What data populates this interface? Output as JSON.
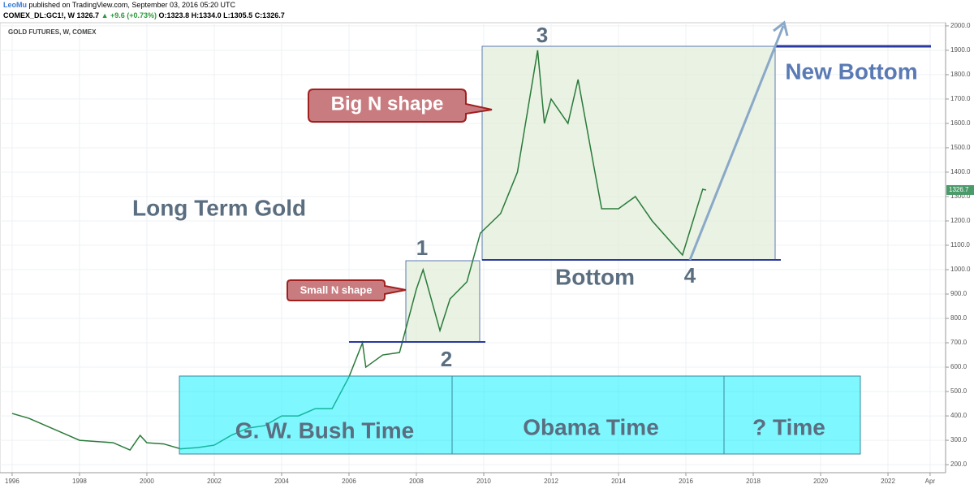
{
  "header": {
    "author": "LeoMu",
    "published": "published on TradingView.com, September 03, 2016 05:20 UTC",
    "symbol": "COMEX_DL:GC1!, W",
    "last": "1326.7",
    "change": "▲ +9.6 (+0.73%)",
    "open": "O:1323.8",
    "high": "H:1334.0",
    "low": "L:1305.5",
    "close": "C:1326.7"
  },
  "chart_data": {
    "type": "line",
    "title": "GOLD FUTURES, W, COMEX",
    "x": [
      1996.0,
      1996.5,
      1997.0,
      1997.5,
      1998.0,
      1998.5,
      1999.0,
      1999.5,
      1999.8,
      2000.0,
      2000.5,
      2001.0,
      2001.5,
      2002.0,
      2002.5,
      2003.0,
      2003.5,
      2004.0,
      2004.5,
      2005.0,
      2005.5,
      2006.0,
      2006.4,
      2006.5,
      2007.0,
      2007.5,
      2008.0,
      2008.2,
      2008.7,
      2009.0,
      2009.5,
      2009.9,
      2010.5,
      2011.0,
      2011.6,
      2011.8,
      2012.0,
      2012.5,
      2012.8,
      2013.3,
      2013.5,
      2014.0,
      2014.5,
      2015.0,
      2015.9,
      2016.5,
      2016.6
    ],
    "series": [
      {
        "name": "GC1!",
        "color": "#2a7a3a",
        "values": [
          410,
          390,
          360,
          330,
          300,
          295,
          290,
          260,
          320,
          290,
          285,
          265,
          270,
          280,
          320,
          350,
          360,
          400,
          400,
          430,
          430,
          560,
          700,
          600,
          650,
          660,
          920,
          1000,
          750,
          880,
          950,
          1150,
          1230,
          1400,
          1900,
          1600,
          1700,
          1600,
          1780,
          1400,
          1250,
          1250,
          1300,
          1200,
          1060,
          1330,
          1326.7
        ]
      }
    ],
    "last_price": "1326.7",
    "xlim": [
      1995.64,
      2023.71
    ],
    "xticks": [
      1996,
      1998,
      2000,
      2002,
      2004,
      2006,
      2008,
      2010,
      2012,
      2014,
      2016,
      2018,
      2020,
      2022,
      {
        "value": 2023.25,
        "label": "Apr"
      }
    ],
    "ylim": [
      167,
      2013
    ],
    "yticks": [
      {
        "value": 200,
        "label": "200.0"
      },
      {
        "value": 300,
        "label": "300.0"
      },
      {
        "value": 400,
        "label": "400.0"
      },
      {
        "value": 500,
        "label": "500.0"
      },
      {
        "value": 600,
        "label": "600.0"
      },
      {
        "value": 700,
        "label": "700.0"
      },
      {
        "value": 800,
        "label": "800.0"
      },
      {
        "value": 900,
        "label": "900.0"
      },
      {
        "value": 1000,
        "label": "1000.0"
      },
      {
        "value": 1100,
        "label": "1100.0"
      },
      {
        "value": 1200,
        "label": "1200.0"
      },
      {
        "value": 1300,
        "label": "1300.0"
      },
      {
        "value": 1400,
        "label": "1400.0"
      },
      {
        "value": 1500,
        "label": "1500.0"
      },
      {
        "value": 1600,
        "label": "1600.0"
      },
      {
        "value": 1700,
        "label": "1700.0"
      },
      {
        "value": 1800,
        "label": "1800.0"
      },
      {
        "value": 1900,
        "label": "1900.0"
      },
      {
        "value": 2000,
        "label": "2000.0"
      }
    ],
    "grid": true,
    "annotations": {
      "main": "Long Term Gold",
      "big": "Big N shape",
      "small": "Small N shape",
      "p1": "1",
      "p2": "2",
      "p3": "3",
      "p4": "4",
      "bottom": "Bottom",
      "new_bottom": "New Bottom",
      "bush": "G. W. Bush Time",
      "obama": "Obama Time",
      "unknown": "? Time"
    }
  }
}
